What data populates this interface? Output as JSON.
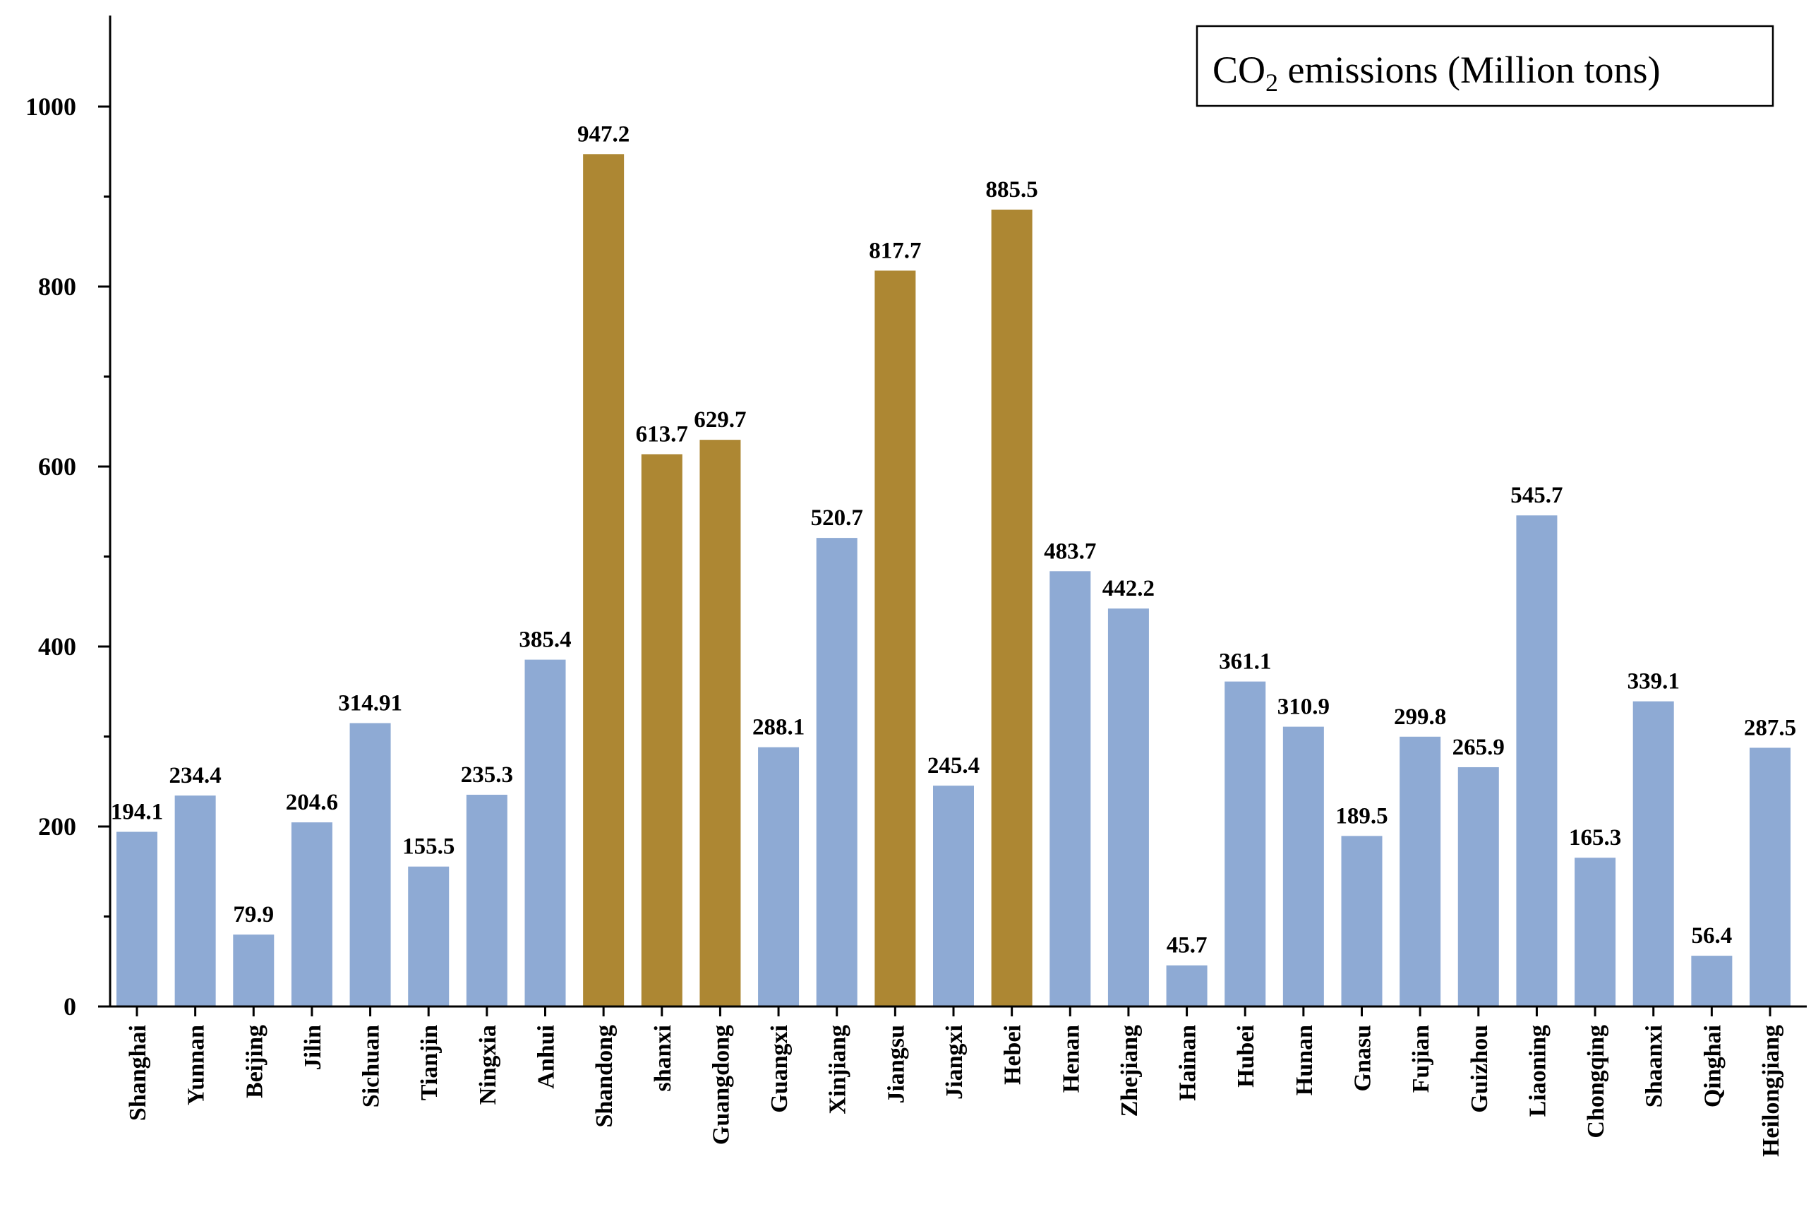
{
  "chart_data": {
    "type": "bar",
    "title": "",
    "xlabel": "",
    "ylabel": "",
    "ylim": [
      0,
      1100
    ],
    "yticks": [
      0,
      200,
      400,
      600,
      800,
      1000
    ],
    "legend": {
      "text_main": "CO",
      "text_sub": "2",
      "text_rest": " emissions (Million tons)",
      "position": "top-right"
    },
    "colors": {
      "default": "#8EAAD4",
      "highlight": "#AD8733"
    },
    "categories": [
      "Shanghai",
      "Yunnan",
      "Beijing",
      "Jilin",
      "Sichuan",
      "Tianjin",
      "Ningxia",
      "Anhui",
      "Shandong",
      "shanxi",
      "Guangdong",
      "Guangxi",
      "Xinjiang",
      "Jiangsu",
      "Jiangxi",
      "Hebei",
      "Henan",
      "Zhejiang",
      "Hainan",
      "Hubei",
      "Hunan",
      "Gnasu",
      "Fujian",
      "Guizhou",
      "Liaoning",
      "Chongqing",
      "Shaanxi",
      "Qinghai",
      "Heilongjiang"
    ],
    "values": [
      194.1,
      234.4,
      79.9,
      204.6,
      314.91,
      155.5,
      235.3,
      385.4,
      947.2,
      613.7,
      629.7,
      288.1,
      520.7,
      817.7,
      245.4,
      885.5,
      483.7,
      442.2,
      45.7,
      361.1,
      310.9,
      189.5,
      299.8,
      265.9,
      545.7,
      165.3,
      339.1,
      56.4,
      287.5
    ],
    "labels": [
      "194.1",
      "234.4",
      "79.9",
      "204.6",
      "314.91",
      "155.5",
      "235.3",
      "385.4",
      "947.2",
      "613.7",
      "629.7",
      "288.1",
      "520.7",
      "817.7",
      "245.4",
      "885.5",
      "483.7",
      "442.2",
      "45.7",
      "361.1",
      "310.9",
      "189.5",
      "299.8",
      "265.9",
      "545.7",
      "165.3",
      "339.1",
      "56.4",
      "287.5"
    ],
    "highlight": [
      false,
      false,
      false,
      false,
      false,
      false,
      false,
      false,
      true,
      true,
      true,
      false,
      false,
      true,
      false,
      true,
      false,
      false,
      false,
      false,
      false,
      false,
      false,
      false,
      false,
      false,
      false,
      false,
      false
    ]
  }
}
